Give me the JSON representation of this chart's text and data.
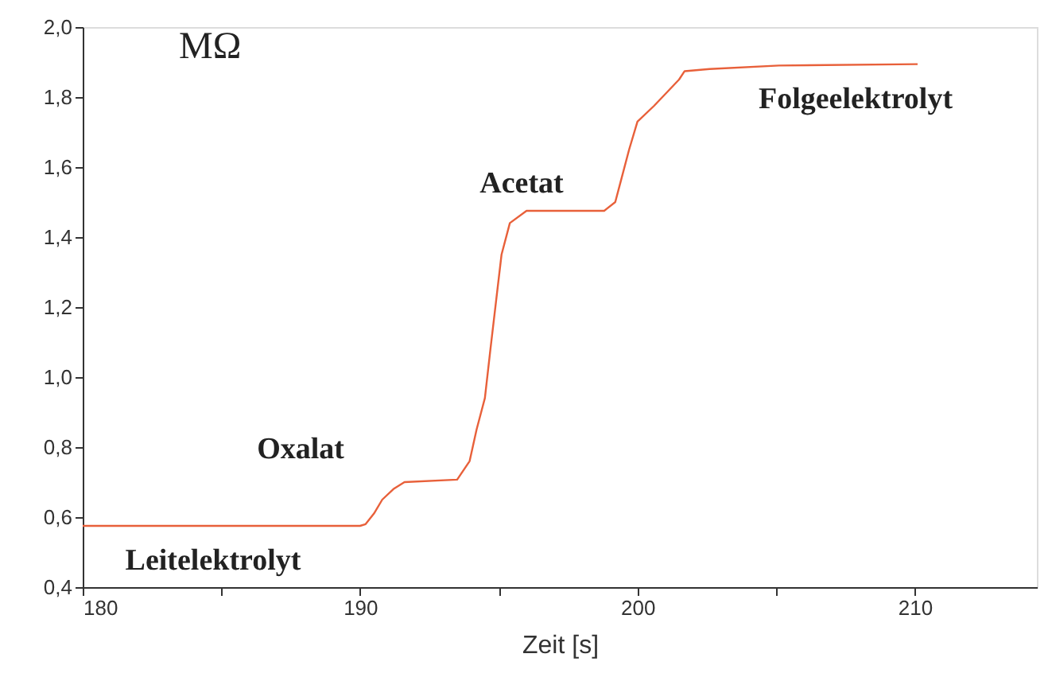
{
  "chart_data": {
    "type": "line",
    "xlabel": "Zeit [s]",
    "ylabel": "MΩ",
    "x": [
      180,
      190,
      190.2,
      190.5,
      190.8,
      191.2,
      191.6,
      193.5,
      193.95,
      194.2,
      194.5,
      194.7,
      194.9,
      195.1,
      195.4,
      196.0,
      198.8,
      199.2,
      199.4,
      199.7,
      200.0,
      200.6,
      201.5,
      201.7,
      202.6,
      205.1,
      210.1
    ],
    "series": [
      {
        "color": "#e8603a",
        "values": [
          0.575,
          0.575,
          0.58,
          0.61,
          0.65,
          0.68,
          0.7,
          0.707,
          0.76,
          0.85,
          0.94,
          1.08,
          1.215,
          1.35,
          1.44,
          1.475,
          1.475,
          1.5,
          1.56,
          1.65,
          1.73,
          1.775,
          1.85,
          1.874,
          1.88,
          1.89,
          1.894
        ]
      }
    ],
    "xlim": [
      180,
      214.4
    ],
    "xticks": [
      180,
      {
        "value": 185,
        "label": null
      },
      190,
      {
        "value": 195,
        "label": null
      },
      200,
      {
        "value": 205,
        "label": null
      },
      210
    ],
    "ylim": [
      0.4,
      2.0
    ],
    "yticks": [
      {
        "value": 0.4,
        "label": "0,4"
      },
      {
        "value": 0.6,
        "label": "0,6"
      },
      {
        "value": 0.8,
        "label": "0,8"
      },
      {
        "value": 1.0,
        "label": "1,0"
      },
      {
        "value": 1.2,
        "label": "1,2"
      },
      {
        "value": 1.4,
        "label": "1,4"
      },
      {
        "value": 1.6,
        "label": "1,6"
      },
      {
        "value": 1.8,
        "label": "1,8"
      },
      {
        "value": 2.0,
        "label": "2,0"
      }
    ],
    "annotations": [
      "Leitelektrolyt",
      "Oxalat",
      "Acetat",
      "Folgeelektrolyt"
    ],
    "grid": false,
    "legend": false,
    "marker": "none",
    "line_style": "solid"
  }
}
